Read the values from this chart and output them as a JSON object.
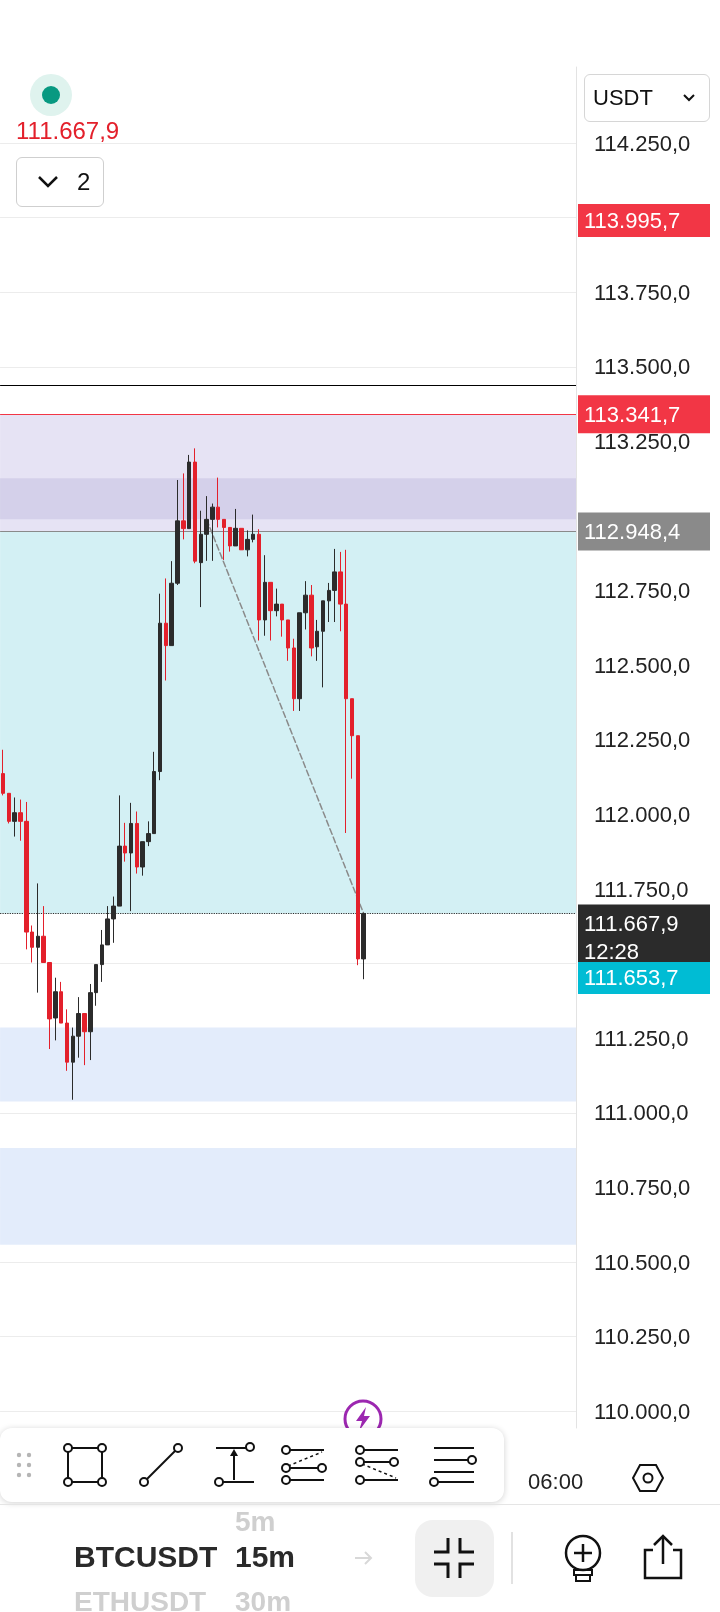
{
  "chart_data": {
    "type": "candlestick",
    "categories": [
      null,
      null,
      null,
      null,
      null,
      null,
      null,
      null,
      null,
      null,
      null,
      null,
      null,
      null,
      null,
      null,
      null,
      null,
      null,
      null,
      null,
      null,
      null,
      null,
      null,
      null,
      null,
      null,
      null,
      null,
      null,
      null,
      null,
      null,
      null,
      null,
      null,
      null,
      null,
      null,
      null,
      null,
      null,
      null,
      null,
      null,
      null,
      null,
      null,
      null,
      null,
      null,
      null,
      null,
      null,
      null,
      null,
      null,
      null,
      null,
      null,
      null,
      null,
      null,
      null,
      null,
      null,
      null,
      null,
      null,
      null,
      null,
      null,
      null,
      null,
      null,
      null,
      null,
      null,
      null,
      null,
      null,
      null,
      null,
      null,
      null,
      null,
      null,
      null,
      null,
      null,
      null,
      null,
      null,
      null,
      "06:00",
      null,
      null,
      null
    ],
    "ohlc": [
      [
        112137,
        112217,
        112064,
        112071
      ],
      [
        112071,
        112071,
        111970,
        111977
      ],
      [
        111977,
        112057,
        111926,
        112006
      ],
      [
        112006,
        112050,
        111912,
        111977
      ],
      [
        111977,
        112042,
        111548,
        111606
      ],
      [
        111606,
        111628,
        111504,
        111555
      ],
      [
        111555,
        111769,
        111403,
        111592
      ],
      [
        111592,
        111693,
        111504,
        111504
      ],
      [
        111504,
        111504,
        111214,
        111315
      ],
      [
        111318,
        111453,
        111243,
        111406
      ],
      [
        111406,
        111439,
        111301,
        111301
      ],
      [
        111301,
        111347,
        111141,
        111170
      ],
      [
        111170,
        111286,
        111044,
        111257
      ],
      [
        111257,
        111388,
        111185,
        111333
      ],
      [
        111333,
        111333,
        111160,
        111272
      ],
      [
        111272,
        111432,
        111177,
        111403
      ],
      [
        111403,
        111497,
        111359,
        111497
      ],
      [
        111497,
        111613,
        111439,
        111563
      ],
      [
        111563,
        111693,
        111563,
        111650
      ],
      [
        111650,
        111725,
        111570,
        111693
      ],
      [
        111693,
        112064,
        111693,
        111894
      ],
      [
        111894,
        111972,
        111842,
        111871
      ],
      [
        111871,
        112039,
        111676,
        111970
      ],
      [
        111970,
        112010,
        111802,
        111824
      ],
      [
        111824,
        111909,
        111795,
        111909
      ],
      [
        111909,
        111977,
        111894,
        111936
      ],
      [
        111936,
        112210,
        111936,
        112144
      ],
      [
        112144,
        112740,
        112115,
        112641
      ],
      [
        112641,
        112791,
        112449,
        112566
      ],
      [
        112566,
        112849,
        112566,
        112775
      ],
      [
        112775,
        113121,
        112769,
        112984
      ],
      [
        112984,
        113143,
        112922,
        112958
      ],
      [
        112958,
        113205,
        112958,
        113181
      ],
      [
        113181,
        113227,
        112842,
        112849
      ],
      [
        112844,
        113018,
        112695,
        112939
      ],
      [
        112939,
        113067,
        112850,
        112989
      ],
      [
        112989,
        113042,
        112850,
        113030
      ],
      [
        113030,
        113129,
        112962,
        112989
      ],
      [
        112989,
        112989,
        112853,
        112962
      ],
      [
        112962,
        112962,
        112881,
        112900
      ],
      [
        112900,
        113024,
        112900,
        112959
      ],
      [
        112959,
        112959,
        112887,
        112887
      ],
      [
        112887,
        112952,
        112865,
        112922
      ],
      [
        112922,
        113005,
        112912,
        112939
      ],
      [
        112939,
        112956,
        112583,
        112652
      ],
      [
        112652,
        112869,
        112599,
        112778
      ],
      [
        112778,
        112778,
        112583,
        112683
      ],
      [
        112683,
        112757,
        112664,
        112705
      ],
      [
        112705,
        112705,
        112596,
        112652
      ],
      [
        112652,
        112652,
        112515,
        112558
      ],
      [
        112558,
        112589,
        112347,
        112388
      ],
      [
        112388,
        112676,
        112347,
        112676
      ],
      [
        112676,
        112782,
        112620,
        112735
      ],
      [
        112735,
        112769,
        112530,
        112558
      ],
      [
        112562,
        112652,
        112515,
        112614
      ],
      [
        112614,
        112716,
        112426,
        112716
      ],
      [
        112716,
        112776,
        112645,
        112751
      ],
      [
        112751,
        112890,
        112645,
        112813
      ],
      [
        112813,
        112880,
        112614,
        112705
      ],
      [
        112705,
        112887,
        111938,
        112388
      ],
      [
        112388,
        112388,
        112120,
        112264
      ],
      [
        112264,
        112264,
        111495,
        111516
      ],
      [
        111516,
        111671,
        111448,
        111667.9
      ],
      null,
      null,
      null,
      null,
      null,
      null,
      null,
      null,
      null,
      null,
      null,
      null,
      null,
      null,
      null,
      null,
      null,
      null,
      null,
      null,
      null,
      null,
      null,
      null,
      null,
      null,
      null,
      null,
      null,
      null,
      null,
      null,
      null,
      null,
      null,
      null
    ],
    "colors": [
      "#e3202b",
      "#e3202b",
      "#2b2b2b",
      "#e3202b",
      "#e3202b",
      "#e3202b",
      "#2b2b2b",
      "#e3202b",
      "#e3202b",
      "#2b2b2b",
      "#e3202b",
      "#e3202b",
      "#2b2b2b",
      "#2b2b2b",
      "#e3202b",
      "#2b2b2b",
      "#2b2b2b",
      "#2b2b2b",
      "#2b2b2b",
      "#2b2b2b",
      "#2b2b2b",
      "#e3202b",
      "#2b2b2b",
      "#e3202b",
      "#2b2b2b",
      "#2b2b2b",
      "#2b2b2b",
      "#2b2b2b",
      "#e3202b",
      "#2b2b2b",
      "#2b2b2b",
      "#e3202b",
      "#2b2b2b",
      "#e3202b",
      "#2b2b2b",
      "#2b2b2b",
      "#2b2b2b",
      "#e3202b",
      "#e3202b",
      "#e3202b",
      "#2b2b2b",
      "#e3202b",
      "#2b2b2b",
      "#2b2b2b",
      "#e3202b",
      "#2b2b2b",
      "#e3202b",
      "#2b2b2b",
      "#e3202b",
      "#e3202b",
      "#e3202b",
      "#2b2b2b",
      "#2b2b2b",
      "#e3202b",
      "#2b2b2b",
      "#2b2b2b",
      "#2b2b2b",
      "#2b2b2b",
      "#e3202b",
      "#e3202b",
      "#e3202b",
      "#e3202b",
      "#2b2b2b",
      null,
      null,
      null,
      null,
      null,
      null,
      null,
      null,
      null,
      null,
      null,
      null,
      null,
      null,
      null,
      null,
      null,
      null,
      null,
      null,
      null,
      null,
      null,
      null,
      null,
      null,
      null,
      null,
      null,
      null,
      null,
      null,
      null,
      null,
      null,
      null
    ],
    "series": [
      {
        "type": "line",
        "values": [
          null,
          null,
          null,
          null,
          null,
          null,
          null,
          null,
          null,
          null,
          null,
          null,
          null,
          null,
          null,
          null,
          null,
          null,
          null,
          null,
          null,
          null,
          null,
          null,
          null,
          null,
          null,
          null,
          null,
          null,
          null,
          null,
          null,
          null,
          null,
          112989,
          null,
          null,
          null,
          null,
          null,
          null,
          null,
          null,
          null,
          null,
          null,
          null,
          null,
          null,
          null,
          null,
          null,
          null,
          null,
          null,
          null,
          null,
          null,
          null,
          null,
          null,
          111668,
          null,
          null,
          null,
          null,
          null,
          null,
          null,
          null,
          null,
          null,
          null,
          null,
          null,
          null,
          null,
          null,
          null,
          null,
          null,
          null,
          null,
          null,
          null,
          null,
          null,
          null,
          null,
          null,
          null,
          null,
          null,
          null,
          null,
          null,
          null,
          null
        ],
        "color": "#8a8a8a",
        "line_style": "dashed",
        "marker": "none"
      }
    ],
    "ylim": [
      109944,
      114505
    ],
    "yticks": [
      {
        "value": 110000,
        "label": "110.000,0"
      },
      {
        "value": 110250,
        "label": "110.250,0"
      },
      {
        "value": 110500,
        "label": "110.500,0"
      },
      {
        "value": 110750,
        "label": "110.750,0"
      },
      {
        "value": 111000,
        "label": "111.000,0"
      },
      {
        "value": 111250,
        "label": "111.250,0"
      },
      {
        "value": 111500,
        "label": null
      },
      {
        "value": 111750,
        "label": "111.750,0"
      },
      {
        "value": 112000,
        "label": "112.000,0"
      },
      {
        "value": 112250,
        "label": "112.250,0"
      },
      {
        "value": 112500,
        "label": "112.500,0"
      },
      {
        "value": 112750,
        "label": "112.750,0"
      },
      {
        "value": 113250,
        "label": "113.250,0"
      },
      {
        "value": 113500,
        "label": "113.500,0"
      },
      {
        "value": 113750,
        "label": "113.750,0"
      },
      {
        "value": 114000,
        "label": null
      },
      {
        "value": 114250,
        "label": "114.250,0"
      }
    ],
    "grid": "y",
    "bands": [
      {
        "axis": "y",
        "from": 112948.4,
        "to": 113341.7,
        "color": "#e6e3f4"
      },
      {
        "axis": "y",
        "from": 112989,
        "to": 113127,
        "color": "#d4d0ea"
      },
      {
        "axis": "y",
        "from": 111667.9,
        "to": 112948.4,
        "color": "#d3f0f4"
      },
      {
        "axis": "y",
        "from": 111038,
        "to": 111286,
        "color": "#e3ecfb"
      },
      {
        "axis": "y",
        "from": 110558,
        "to": 110882,
        "color": "#e3ecfb"
      }
    ],
    "ref_lines": [
      {
        "axis": "y",
        "value": 113437,
        "color": "#000000",
        "line_style": "solid"
      },
      {
        "axis": "y",
        "value": 113341.7,
        "label": "113.341,7",
        "color": "#f23645",
        "line_style": "solid"
      },
      {
        "axis": "y",
        "value": 112948.4,
        "label": "112.948,4",
        "color": "#8a8a8a",
        "line_style": "solid"
      },
      {
        "axis": "y",
        "value": 111667.9,
        "label": "111.667,9\n12:28",
        "color": "#2b2b2b",
        "line_style": "dotted"
      }
    ],
    "annotations": [
      "111.667,9",
      "2",
      "USDT",
      "BTCUSDT",
      "15m",
      "5m",
      "30m",
      "ETHUSDT",
      "113.995,7",
      "111.653,7"
    ]
  }
}
